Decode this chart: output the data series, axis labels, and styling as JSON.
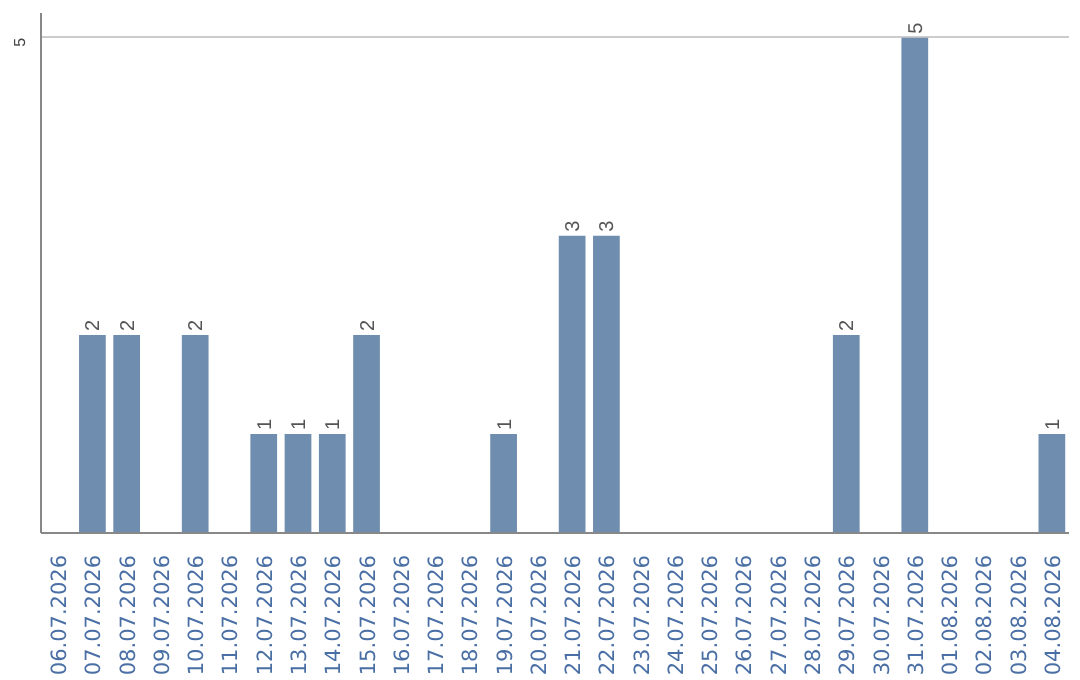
{
  "chart_data": {
    "type": "bar",
    "categories": [
      "06.07.2026",
      "07.07.2026",
      "08.07.2026",
      "09.07.2026",
      "10.07.2026",
      "11.07.2026",
      "12.07.2026",
      "13.07.2026",
      "14.07.2026",
      "15.07.2026",
      "16.07.2026",
      "17.07.2026",
      "18.07.2026",
      "19.07.2026",
      "20.07.2026",
      "21.07.2026",
      "22.07.2026",
      "23.07.2026",
      "24.07.2026",
      "25.07.2026",
      "26.07.2026",
      "27.07.2026",
      "28.07.2026",
      "29.07.2026",
      "30.07.2026",
      "31.07.2026",
      "01.08.2026",
      "02.08.2026",
      "03.08.2026",
      "04.08.2026"
    ],
    "values": [
      null,
      2,
      2,
      null,
      2,
      null,
      1,
      1,
      1,
      2,
      null,
      null,
      null,
      1,
      null,
      3,
      3,
      null,
      null,
      null,
      null,
      null,
      null,
      2,
      null,
      5,
      null,
      null,
      null,
      1
    ],
    "color": "#6f8daf",
    "ylim": [
      0,
      5.25
    ],
    "yticks": [
      5
    ],
    "grid": "y",
    "data_labels": true
  }
}
